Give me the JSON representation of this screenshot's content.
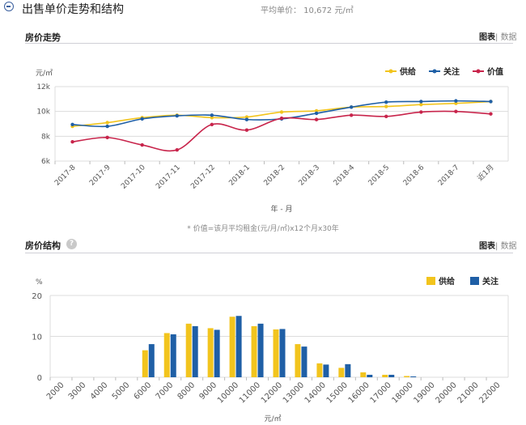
{
  "header": {
    "title": "出售单价走势和结构",
    "avg_price": "平均单价： 10,672 元/㎡",
    "icons": {
      "collapse": "minus-circle-icon",
      "info": "question-circle-icon"
    }
  },
  "trend_section": {
    "title": "房价走势",
    "tab_chart": "图表",
    "tab_data": "数据",
    "footnote": "* 价值=该月平均租金(元/月/㎡)x12个月x30年"
  },
  "structure_section": {
    "title": "房价结构",
    "info_icon": "?",
    "tab_chart": "图表",
    "tab_data": "数据"
  },
  "colors": {
    "supply": "#f2c41d",
    "attention": "#1f5fa6",
    "value": "#c8244b",
    "grid": "#dcdcdc",
    "accent": "#3a5f9e"
  },
  "chart_data": [
    {
      "type": "line",
      "ylabel": "元/㎡",
      "xlabel": "年 - 月",
      "categories": [
        "2017-8",
        "2017-9",
        "2017-10",
        "2017-11",
        "2017-12",
        "2018-1",
        "2018-2",
        "2018-3",
        "2018-4",
        "2018-5",
        "2018-6",
        "2018-7",
        "近1月"
      ],
      "ylim": [
        6000,
        12000
      ],
      "yticks": [
        6000,
        8000,
        10000,
        12000
      ],
      "ytick_labels": [
        "6k",
        "8k",
        "10k",
        "12k"
      ],
      "legend_position": "top-right",
      "grid": true,
      "series": [
        {
          "name": "供给",
          "color": "#f2c41d",
          "values": [
            8800,
            9100,
            9500,
            9700,
            9500,
            9550,
            9950,
            10050,
            10350,
            10400,
            10550,
            10650,
            10800
          ]
        },
        {
          "name": "关注",
          "color": "#1f5fa6",
          "values": [
            8950,
            8800,
            9400,
            9650,
            9700,
            9350,
            9400,
            9850,
            10350,
            10750,
            10800,
            10850,
            10800
          ]
        },
        {
          "name": "价值",
          "color": "#c8244b",
          "values": [
            7550,
            7900,
            7300,
            6900,
            8950,
            8500,
            9450,
            9350,
            9700,
            9600,
            9950,
            10000,
            9800
          ]
        }
      ]
    },
    {
      "type": "bar",
      "ylabel": "%",
      "xlabel": "元/㎡",
      "categories": [
        "2000",
        "3000",
        "4000",
        "5000",
        "6000",
        "7000",
        "8000",
        "9000",
        "10000",
        "11000",
        "12000",
        "13000",
        "14000",
        "15000",
        "16000",
        "17000",
        "18000",
        "19000",
        "20000",
        "21000",
        "22000"
      ],
      "ylim": [
        0,
        20
      ],
      "yticks": [
        0,
        10,
        20
      ],
      "legend_position": "top-right",
      "grid": true,
      "series": [
        {
          "name": "供给",
          "color": "#f2c41d",
          "values": [
            0,
            0,
            0,
            0,
            6.6,
            10.8,
            13.1,
            12.0,
            14.8,
            12.5,
            11.7,
            8.1,
            3.4,
            2.3,
            1.2,
            0.6,
            0.3,
            0,
            0,
            0,
            0
          ]
        },
        {
          "name": "关注",
          "color": "#1f5fa6",
          "values": [
            0,
            0,
            0,
            0,
            8.1,
            10.5,
            12.5,
            11.6,
            15.0,
            13.1,
            11.8,
            7.5,
            3.1,
            3.2,
            0.6,
            0.6,
            0.2,
            0,
            0,
            0,
            0
          ]
        }
      ]
    }
  ]
}
